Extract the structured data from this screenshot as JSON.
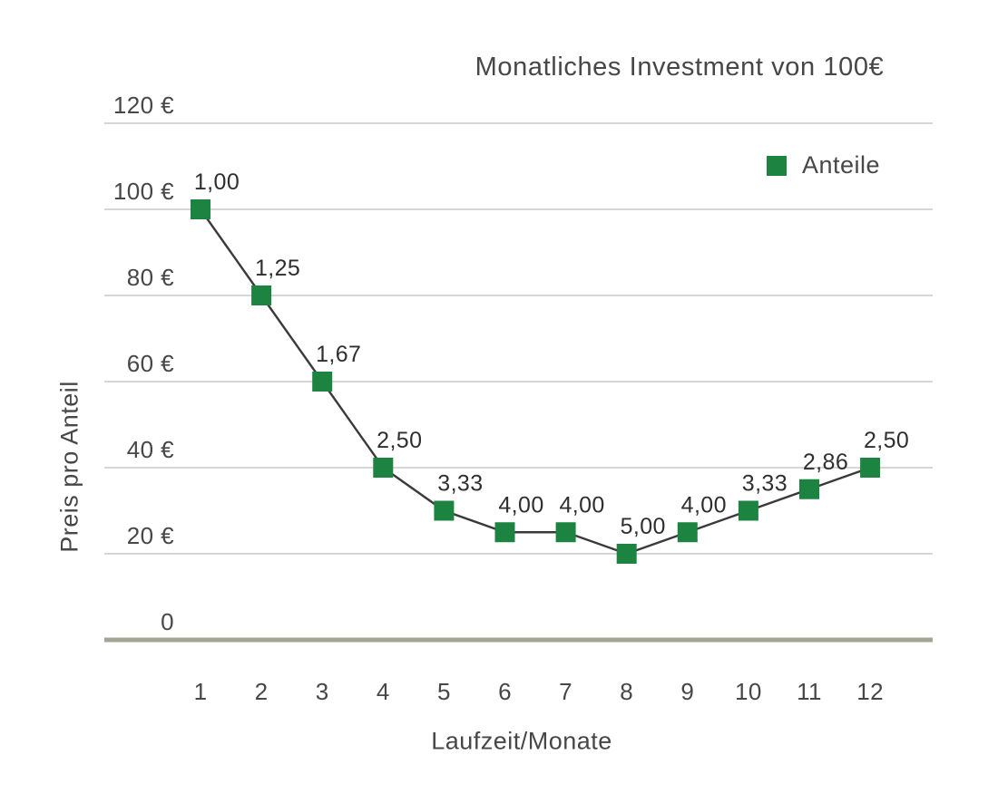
{
  "chart_data": {
    "type": "line",
    "title": "Monatliches Investment von 100€",
    "xlabel": "Laufzeit/Monate",
    "ylabel": "Preis pro Anteil",
    "legend": {
      "position": "top-right",
      "items": [
        {
          "label": "Anteile",
          "marker": "square",
          "color": "#1c8440"
        }
      ]
    },
    "x_categories": [
      "1",
      "2",
      "3",
      "4",
      "5",
      "6",
      "7",
      "8",
      "9",
      "10",
      "11",
      "12"
    ],
    "series": [
      {
        "name": "Anteile",
        "marker": "square",
        "color": "#1c8440",
        "price_per_share_eur": [
          100,
          80,
          60,
          40,
          30,
          25,
          25,
          20,
          25,
          30,
          35,
          40
        ],
        "point_labels_shares": [
          "1,00",
          "1,25",
          "1,67",
          "2,50",
          "3,33",
          "4,00",
          "4,00",
          "5,00",
          "4,00",
          "3,33",
          "2,86",
          "2,50"
        ]
      }
    ],
    "y_ticks": [
      {
        "value": 120,
        "label": "120 €"
      },
      {
        "value": 100,
        "label": "100 €"
      },
      {
        "value": 80,
        "label": "80 €"
      },
      {
        "value": 60,
        "label": "60 €"
      },
      {
        "value": 40,
        "label": "40 €"
      },
      {
        "value": 20,
        "label": "20 €"
      },
      {
        "value": 0,
        "label": "0"
      }
    ],
    "ylim": [
      0,
      120
    ],
    "grid": "horizontal-only",
    "colors": {
      "marker_green": "#1c8440",
      "series_line": "#3a3a3a",
      "gridline": "#c9c9c9",
      "zero_axis_line": "#a3a396",
      "axis_text": "#474747",
      "point_label_text": "#2f2f2f"
    }
  }
}
